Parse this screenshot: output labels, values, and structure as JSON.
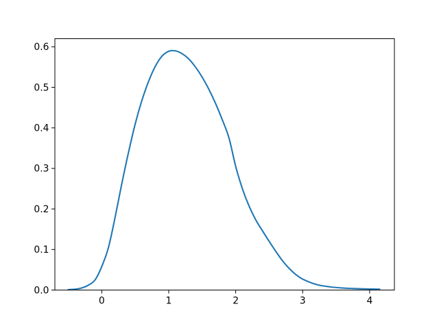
{
  "figure": {
    "background": "#ffffff"
  },
  "chart_data": {
    "type": "line",
    "title": "",
    "xlabel": "",
    "ylabel": "",
    "xlim": [
      -0.7,
      4.37
    ],
    "ylim": [
      0,
      0.62
    ],
    "grid": false,
    "legend_position": "none",
    "x_ticks": [
      0,
      1,
      2,
      3,
      4
    ],
    "x_tick_labels": [
      "0",
      "1",
      "2",
      "3",
      "4"
    ],
    "y_ticks": [
      0.0,
      0.1,
      0.2,
      0.3,
      0.4,
      0.5,
      0.6
    ],
    "y_tick_labels": [
      "0.0",
      "0.1",
      "0.2",
      "0.3",
      "0.4",
      "0.5",
      "0.6"
    ],
    "series": [
      {
        "color": "#1f77b4",
        "line_width_pt": 1.5,
        "x": [
          -0.5,
          -0.4,
          -0.3,
          -0.2,
          -0.1,
          0.0,
          0.1,
          0.2,
          0.3,
          0.4,
          0.5,
          0.6,
          0.7,
          0.8,
          0.9,
          1.0,
          1.1,
          1.2,
          1.3,
          1.4,
          1.5,
          1.6,
          1.7,
          1.8,
          1.9,
          2.0,
          2.1,
          2.2,
          2.3,
          2.4,
          2.5,
          2.6,
          2.7,
          2.8,
          2.9,
          3.0,
          3.2,
          3.4,
          3.6,
          3.8,
          4.0,
          4.15
        ],
        "y": [
          0.001,
          0.002,
          0.005,
          0.012,
          0.025,
          0.058,
          0.105,
          0.18,
          0.263,
          0.34,
          0.41,
          0.468,
          0.515,
          0.552,
          0.577,
          0.589,
          0.59,
          0.583,
          0.57,
          0.55,
          0.525,
          0.495,
          0.46,
          0.42,
          0.375,
          0.305,
          0.25,
          0.207,
          0.173,
          0.146,
          0.12,
          0.095,
          0.072,
          0.053,
          0.038,
          0.027,
          0.014,
          0.008,
          0.005,
          0.0035,
          0.0025,
          0.002
        ]
      }
    ]
  }
}
